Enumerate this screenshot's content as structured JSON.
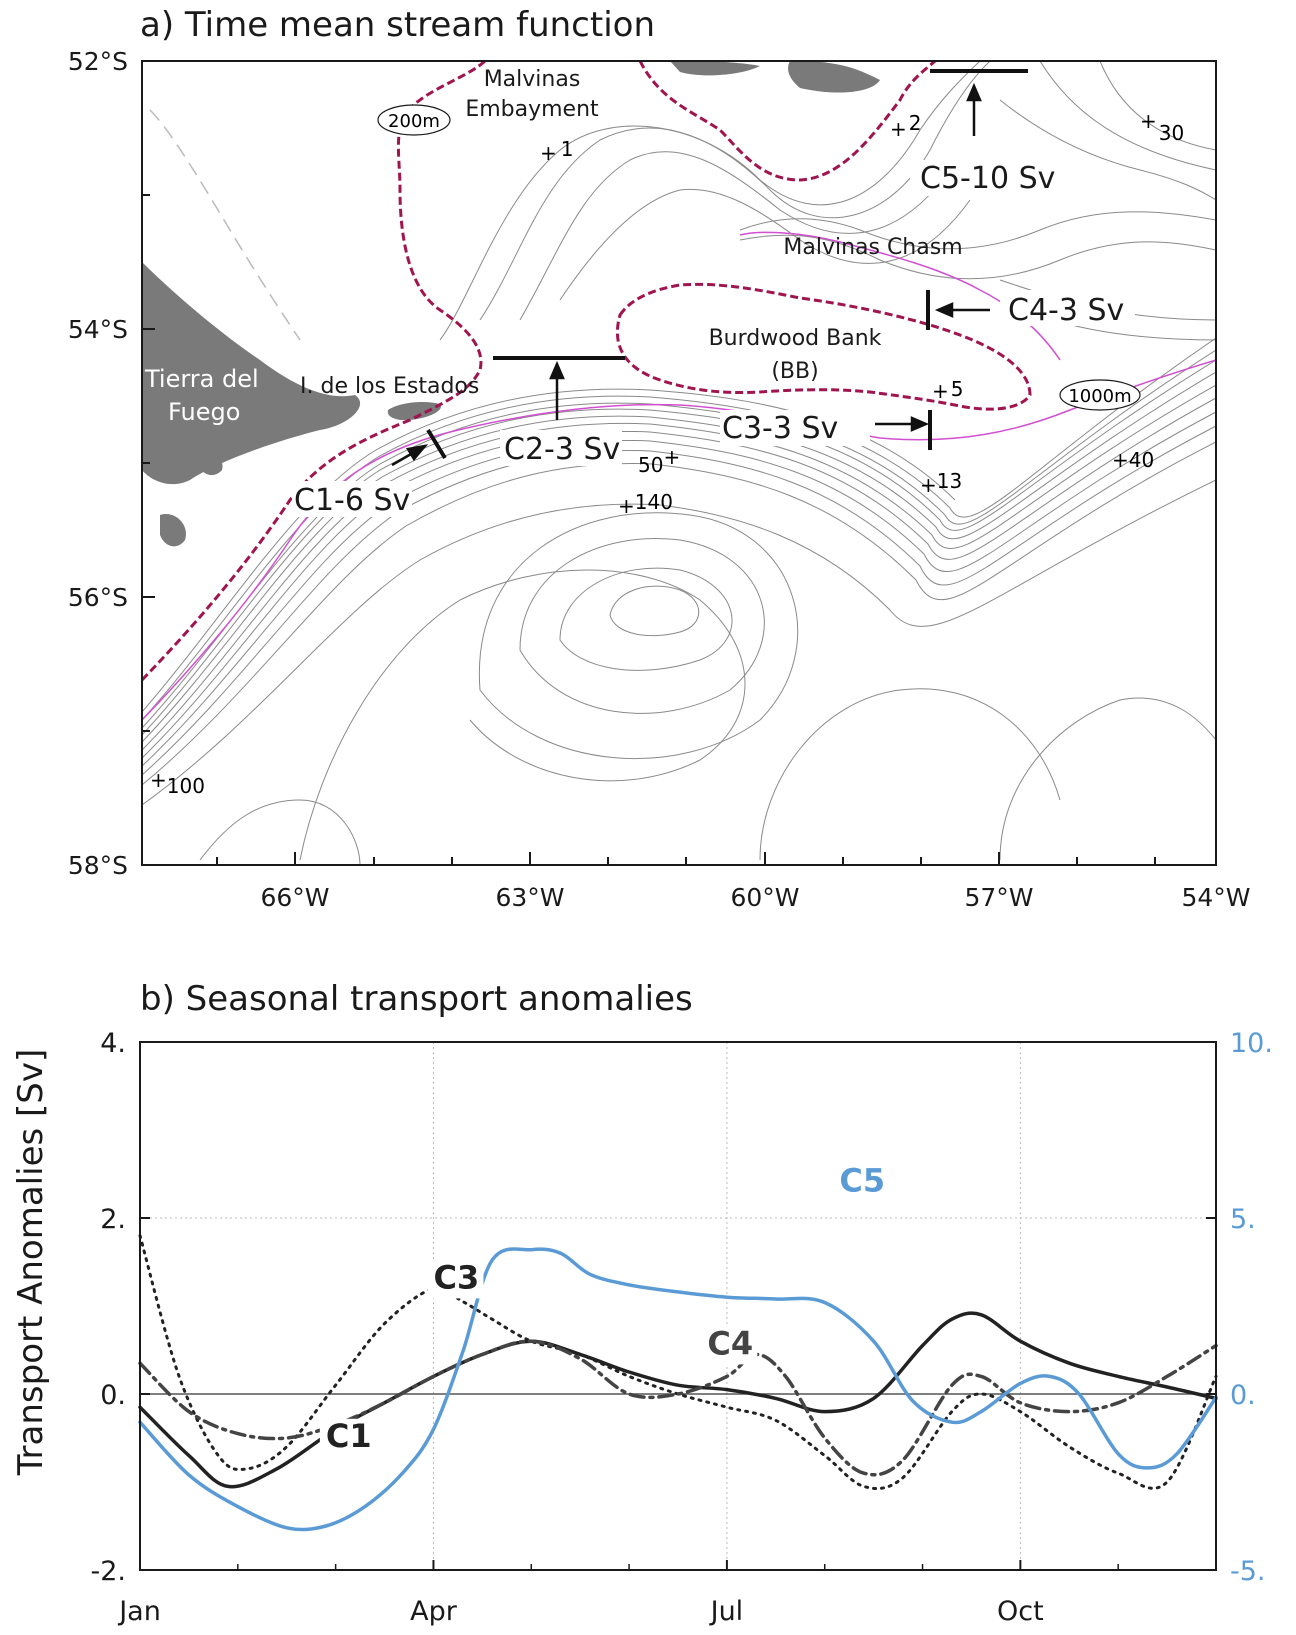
{
  "map": {
    "title": "a) Time mean stream function",
    "lat_ticks": [
      "52°S",
      "54°S",
      "56°S",
      "58°S"
    ],
    "lon_ticks": [
      "66°W",
      "63°W",
      "60°W",
      "57°W",
      "54°W"
    ],
    "place_labels": {
      "malvinas_embayment_1": "Malvinas",
      "malvinas_embayment_2": "Embayment",
      "isobath_200": "200m",
      "isobath_1000": "1000m",
      "malvinas_chasm": "Malvinas Chasm",
      "burdwood_bank": "Burdwood Bank",
      "bb": "(BB)",
      "tierra_del_fuego_1": "Tierra del",
      "tierra_del_fuego_2": "Fuego",
      "isla_estados": "I. de los Estados"
    },
    "sections": {
      "c1": "C1-6 Sv",
      "c2": "C2-3 Sv",
      "c3": "C3-3 Sv",
      "c4": "C4-3 Sv",
      "c5": "C5-10 Sv"
    },
    "contour_values": {
      "v1": "1",
      "v2": "2",
      "v30": "30",
      "v5": "5",
      "v13": "13",
      "v40": "40",
      "v50": "50",
      "v140": "140",
      "v100": "100"
    },
    "colors": {
      "isobath_200": "#a0144f",
      "isobath_1000": "#d24fd2",
      "land": "#7a7a7a",
      "streamlines": "#8a8a8a"
    }
  },
  "chart_data": {
    "type": "line",
    "title": "b) Seasonal transport anomalies",
    "ylabel": "Transport Anomalies [Sv]",
    "ylim": [
      -2,
      4
    ],
    "y2lim": [
      -5,
      10
    ],
    "y_ticks": [
      "4.",
      "2.",
      "0.",
      "-2."
    ],
    "y2_ticks": [
      "10.",
      "5.",
      "0.",
      "-5."
    ],
    "x_ticks": [
      "Jan",
      "Apr",
      "Jul",
      "Oct"
    ],
    "x_tick_positions_month": [
      0,
      3,
      6,
      9
    ],
    "x_range_month": [
      0,
      11
    ],
    "grid": true,
    "series": [
      {
        "name": "C1",
        "axis": "left",
        "color": "#222222",
        "style": "solid",
        "x": [
          0,
          0.5,
          0.9,
          1.4,
          2.0,
          2.5,
          3.0,
          3.5,
          4.0,
          4.5,
          5.0,
          5.5,
          6.0,
          6.5,
          7.0,
          7.5,
          8.0,
          8.3,
          8.6,
          9.0,
          9.5,
          10.0,
          10.5,
          11.0
        ],
        "y": [
          -0.15,
          -0.7,
          -1.05,
          -0.85,
          -0.4,
          -0.1,
          0.2,
          0.45,
          0.6,
          0.45,
          0.25,
          0.1,
          0.05,
          -0.05,
          -0.2,
          -0.05,
          0.55,
          0.85,
          0.9,
          0.6,
          0.35,
          0.2,
          0.08,
          -0.05
        ]
      },
      {
        "name": "C3",
        "axis": "left",
        "color": "#222222",
        "style": "dotted",
        "x": [
          0,
          0.4,
          0.8,
          1.1,
          1.5,
          2.0,
          2.5,
          3.0,
          3.3,
          3.6,
          4.0,
          4.5,
          5.0,
          5.5,
          6.0,
          6.5,
          7.0,
          7.4,
          7.8,
          8.3,
          8.6,
          9.0,
          9.5,
          10.0,
          10.5,
          11.0
        ],
        "y": [
          1.8,
          0.2,
          -0.7,
          -0.85,
          -0.6,
          0.1,
          0.8,
          1.2,
          1.05,
          0.85,
          0.6,
          0.45,
          0.2,
          0.0,
          -0.15,
          -0.3,
          -0.7,
          -1.05,
          -0.95,
          -0.2,
          0.0,
          -0.2,
          -0.6,
          -0.9,
          -1.0,
          0.2
        ]
      },
      {
        "name": "C4",
        "axis": "left",
        "color": "#444444",
        "style": "dashdot",
        "x": [
          0,
          0.5,
          1.0,
          1.5,
          2.0,
          2.5,
          3.0,
          3.5,
          4.0,
          4.5,
          5.0,
          5.5,
          6.0,
          6.3,
          6.6,
          7.0,
          7.4,
          7.8,
          8.3,
          8.6,
          9.0,
          9.5,
          10.0,
          10.5,
          11.0
        ],
        "y": [
          0.35,
          -0.2,
          -0.45,
          -0.5,
          -0.35,
          -0.1,
          0.2,
          0.45,
          0.6,
          0.4,
          0.0,
          0.0,
          0.2,
          0.45,
          0.2,
          -0.5,
          -0.9,
          -0.75,
          0.1,
          0.2,
          -0.1,
          -0.2,
          -0.1,
          0.2,
          0.55
        ]
      },
      {
        "name": "C5",
        "axis": "right",
        "color": "#5b9bd5",
        "style": "solid",
        "x": [
          0,
          0.5,
          1.0,
          1.5,
          1.9,
          2.3,
          2.7,
          3.0,
          3.3,
          3.6,
          4.0,
          4.3,
          4.6,
          5.0,
          5.5,
          6.0,
          6.5,
          7.0,
          7.5,
          7.9,
          8.3,
          8.6,
          9.0,
          9.3,
          9.6,
          10.0,
          10.3,
          10.6,
          11.0
        ],
        "y": [
          -0.8,
          -2.3,
          -3.2,
          -3.8,
          -3.75,
          -3.2,
          -2.2,
          -1.0,
          1.2,
          3.8,
          4.1,
          4.0,
          3.4,
          3.1,
          2.9,
          2.75,
          2.7,
          2.6,
          1.5,
          -0.2,
          -0.8,
          -0.5,
          0.3,
          0.5,
          0.0,
          -1.7,
          -2.1,
          -1.7,
          -0.1
        ]
      }
    ]
  }
}
